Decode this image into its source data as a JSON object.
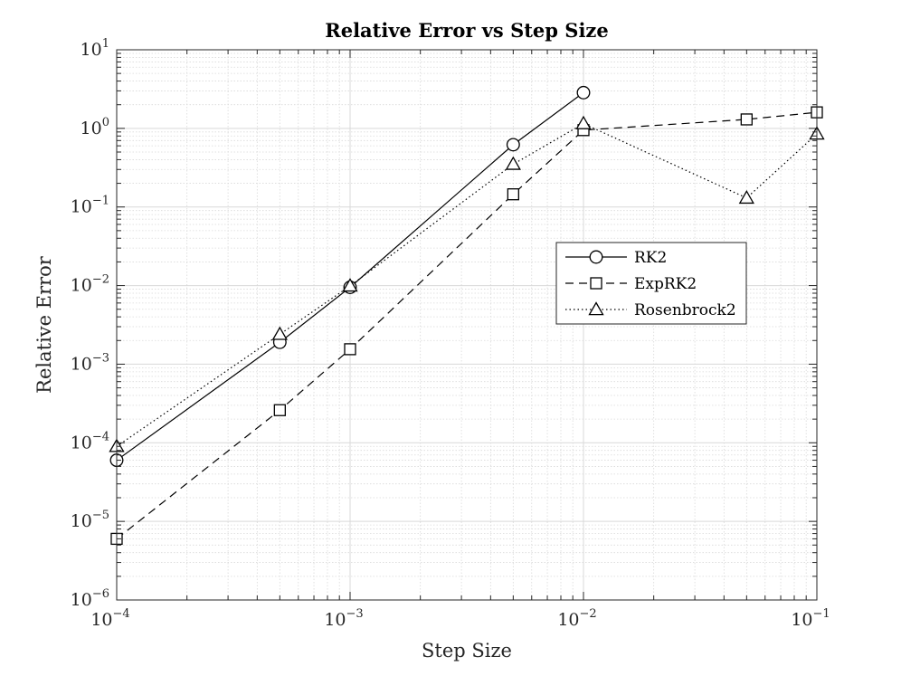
{
  "chart_data": {
    "type": "line",
    "title": "Relative Error vs Step Size",
    "xlabel": "Step Size",
    "ylabel": "Relative Error",
    "xscale": "log",
    "yscale": "log",
    "xlim": [
      0.0001,
      0.1
    ],
    "ylim": [
      1e-06,
      10
    ],
    "grid": "on (major and minor)",
    "legend_position": "right, middle",
    "x_ticks": [
      {
        "base": "10",
        "exp": "−4"
      },
      {
        "base": "10",
        "exp": "−3"
      },
      {
        "base": "10",
        "exp": "−2"
      },
      {
        "base": "10",
        "exp": "−1"
      }
    ],
    "y_ticks": [
      {
        "base": "10",
        "exp": "−6"
      },
      {
        "base": "10",
        "exp": "−5"
      },
      {
        "base": "10",
        "exp": "−4"
      },
      {
        "base": "10",
        "exp": "−3"
      },
      {
        "base": "10",
        "exp": "−2"
      },
      {
        "base": "10",
        "exp": "−1"
      },
      {
        "base": "10",
        "exp": "0"
      },
      {
        "base": "10",
        "exp": "1"
      }
    ],
    "series": [
      {
        "name": "RK2",
        "marker": "circle",
        "line_style": "solid",
        "x": [
          0.0001,
          0.0005,
          0.001,
          0.005,
          0.01
        ],
        "y": [
          6e-05,
          0.0019,
          0.0095,
          0.62,
          2.85
        ]
      },
      {
        "name": "ExpRK2",
        "marker": "square",
        "line_style": "dashed",
        "x": [
          0.0001,
          0.0005,
          0.001,
          0.005,
          0.01,
          0.05,
          0.1
        ],
        "y": [
          6e-06,
          0.00026,
          0.00155,
          0.145,
          0.95,
          1.3,
          1.6
        ]
      },
      {
        "name": "Rosenbrock2",
        "marker": "triangle",
        "line_style": "dotted",
        "x": [
          0.0001,
          0.0005,
          0.001,
          0.005,
          0.01,
          0.05,
          0.1
        ],
        "y": [
          9e-05,
          0.0024,
          0.0099,
          0.35,
          1.15,
          0.13,
          0.85
        ]
      }
    ],
    "colors": {
      "line": "#000000",
      "grid": "#d9d9d9",
      "axis": "#262626"
    }
  }
}
